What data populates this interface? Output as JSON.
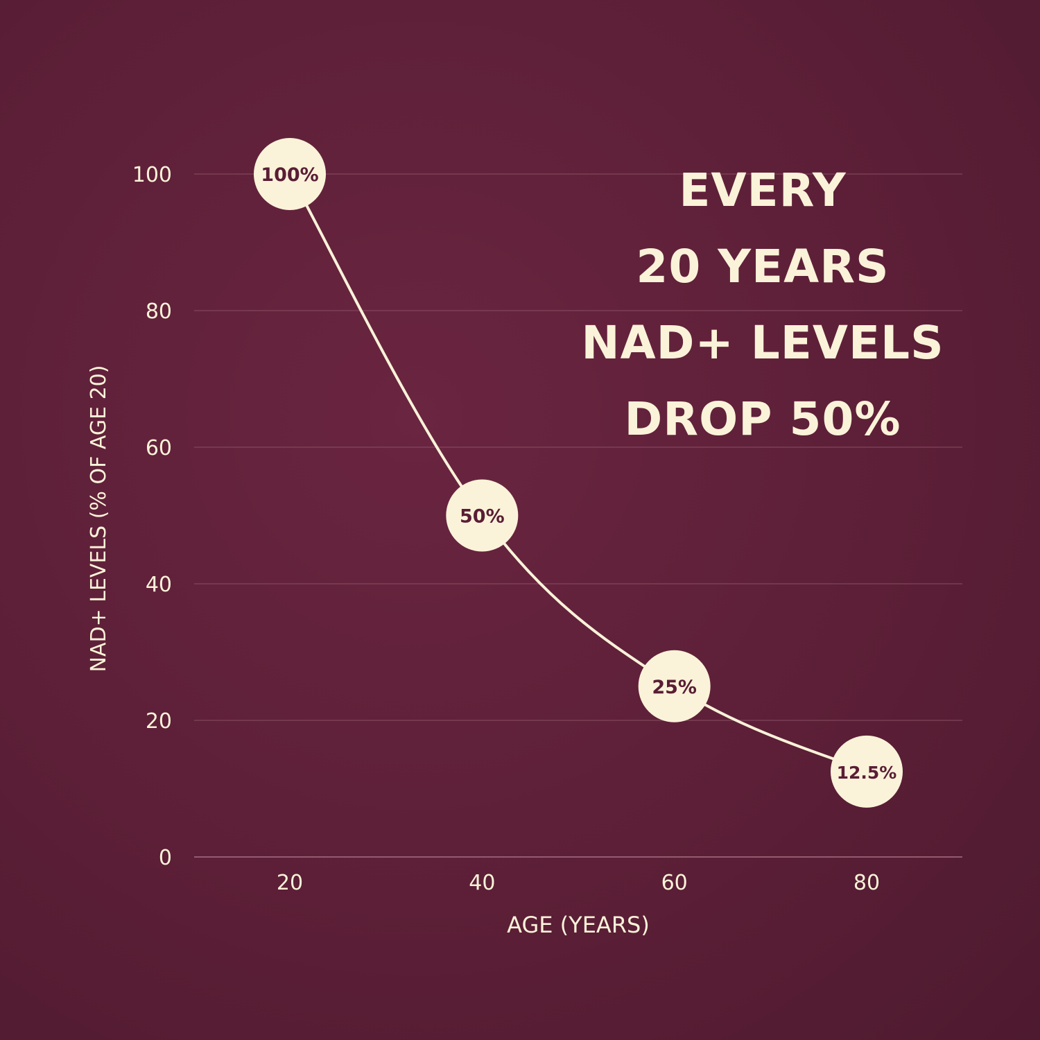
{
  "colors": {
    "background": "#5c1f37",
    "foreground": "#fbf3d9",
    "grid": "#8a5266",
    "marker_text": "#5a1d35"
  },
  "headline": {
    "line1": "EVERY",
    "line2": "20 YEARS",
    "line3": "NAD+ LEVELS",
    "line4": "DROP 50%"
  },
  "chart_data": {
    "type": "line",
    "title": "",
    "xlabel": "AGE (YEARS)",
    "ylabel": "NAD+ LEVELS (% OF AGE 20)",
    "x": [
      20,
      40,
      60,
      80
    ],
    "x_ticks": [
      "20",
      "40",
      "60",
      "80"
    ],
    "y_ticks": [
      "0",
      "20",
      "40",
      "60",
      "80",
      "100"
    ],
    "ylim": [
      0,
      100
    ],
    "xlim": [
      10,
      90
    ],
    "grid": true,
    "series": [
      {
        "values": [
          100,
          50,
          25,
          12.5
        ],
        "point_labels": [
          "100%",
          "50%",
          "25%",
          "12.5%"
        ]
      }
    ]
  }
}
